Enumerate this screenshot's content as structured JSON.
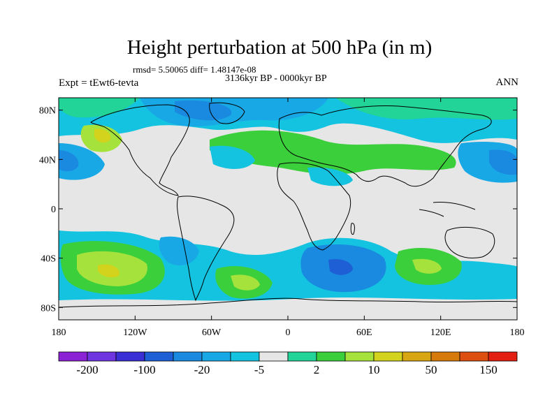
{
  "title": "Height perturbation at 500 hPa (in m)",
  "stats_text": "rmsd= 5.50065 diff= 1.48147e-08",
  "period_text": "3136kyr BP - 0000kyr BP",
  "experiment_text": "Expt = tEwt6-tevta",
  "season_text": "ANN",
  "map": {
    "lat_labels": [
      "80N",
      "40N",
      "0",
      "40S",
      "80S"
    ],
    "lat_values": [
      80,
      40,
      0,
      -40,
      -80
    ],
    "lon_labels": [
      "180",
      "120W",
      "60W",
      "0",
      "60E",
      "120E",
      "180"
    ],
    "lon_values": [
      -180,
      -120,
      -60,
      0,
      60,
      120,
      180
    ],
    "lon_range": [
      -180,
      180
    ],
    "lat_range": [
      -90,
      90
    ]
  },
  "colorbar": {
    "colors": [
      "#8b22d6",
      "#6f35e0",
      "#3a2fd4",
      "#1f5fd6",
      "#1a8ae0",
      "#19a8e6",
      "#13c3e0",
      "#e6e6e6",
      "#22d497",
      "#3bcf3c",
      "#a6e23c",
      "#d3d31e",
      "#d8a612",
      "#d77a0c",
      "#dd4f10",
      "#e21f10"
    ],
    "labels": [
      "-200",
      "-100",
      "-20",
      "-5",
      "2",
      "10",
      "50",
      "150"
    ]
  }
}
